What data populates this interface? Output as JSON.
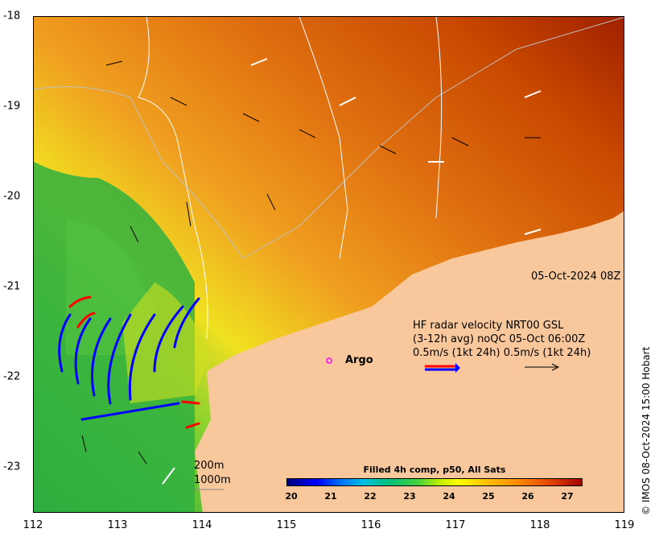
{
  "map": {
    "date_label": "05-Oct-2024 08Z",
    "argo_label": "Argo",
    "scale": {
      "depth1": "200m",
      "depth2": "1000m"
    },
    "legend": {
      "line1": "HF radar velocity  NRT00 GSL",
      "line2": "(3-12h avg) noQC 05-Oct 06:00Z",
      "line3": "0.5m/s (1kt 24h)   0.5m/s (1kt 24h)"
    },
    "x_ticks": [
      "112",
      "113",
      "114",
      "115",
      "116",
      "117",
      "118",
      "119"
    ],
    "y_ticks": [
      "-18",
      "-19",
      "-20",
      "-21",
      "-22",
      "-23"
    ]
  },
  "colorbar": {
    "title": "Filled 4h comp, p50, All Sats",
    "ticks": [
      "20",
      "21",
      "22",
      "23",
      "24",
      "25",
      "26",
      "27"
    ]
  },
  "credit": "© IMOS 08-Oct-2024 15:00 Hobart",
  "colors": {
    "land": "#f8c89c",
    "warm": "#c84000",
    "cool": "#20b040",
    "radar_blue": "#0000ff",
    "radar_red": "#ff0000",
    "argo": "#ff00ff"
  }
}
